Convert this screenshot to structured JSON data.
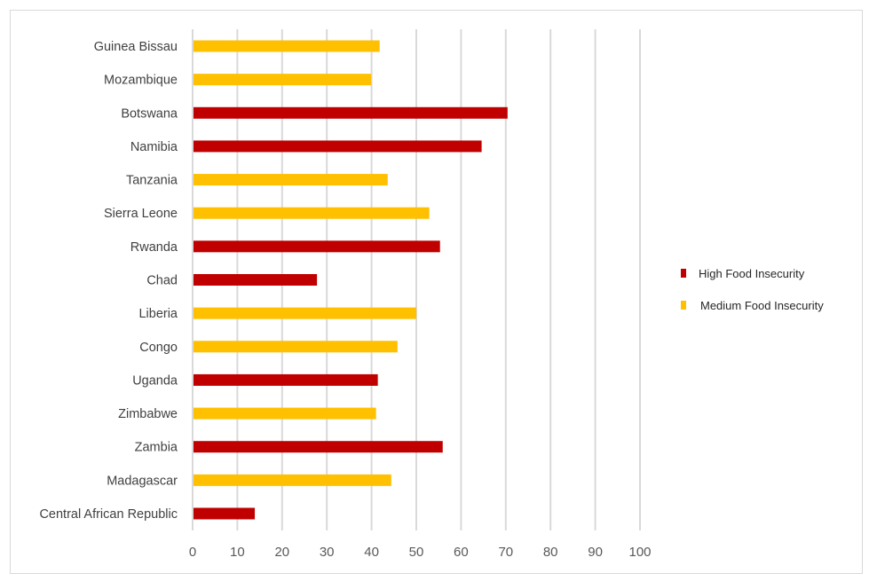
{
  "chart_data": {
    "type": "bar",
    "orientation": "horizontal",
    "title": "",
    "xlabel": "",
    "ylabel": "",
    "xlim": [
      0,
      100
    ],
    "xticks": [
      0,
      10,
      20,
      30,
      40,
      50,
      60,
      70,
      80,
      90,
      100
    ],
    "grid": true,
    "legend_position": "right",
    "legend": [
      {
        "name": "High Food Insecurity",
        "color": "#c00000"
      },
      {
        "name": "Medium Food Insecurity",
        "color": "#ffc000"
      }
    ],
    "categories": [
      "Guinea Bissau",
      "Mozambique",
      "Botswana",
      "Namibia",
      "Tanzania",
      "Sierra Leone",
      "Rwanda",
      "Chad",
      "Liberia",
      "Congo",
      "Uganda",
      "Zimbabwe",
      "Zambia",
      "Madagascar",
      "Central African Republic"
    ],
    "values": [
      41.8,
      39.9,
      70.4,
      64.6,
      43.6,
      52.9,
      55.3,
      27.8,
      50.0,
      45.8,
      41.4,
      41.0,
      55.9,
      44.4,
      13.9
    ],
    "groups": [
      "Medium Food Insecurity",
      "Medium Food Insecurity",
      "High Food Insecurity",
      "High Food Insecurity",
      "Medium Food Insecurity",
      "Medium Food Insecurity",
      "High Food Insecurity",
      "High Food Insecurity",
      "Medium Food Insecurity",
      "Medium Food Insecurity",
      "High Food Insecurity",
      "Medium Food Insecurity",
      "High Food Insecurity",
      "Medium Food Insecurity",
      "High Food Insecurity"
    ]
  }
}
